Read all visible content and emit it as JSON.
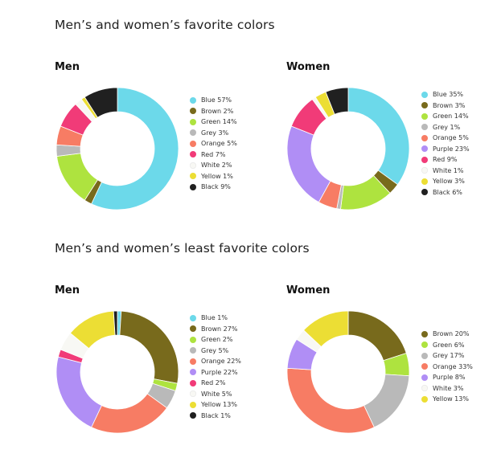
{
  "sections": [
    {
      "title": "Men’s and women’s favorite colors"
    },
    {
      "title": "Men’s and women’s least favorite colors"
    }
  ],
  "chart_data": [
    {
      "type": "pie",
      "title": "Men",
      "group": "favorite",
      "series": [
        {
          "values": [
            57,
            2,
            14,
            3,
            5,
            7,
            2,
            1,
            9
          ]
        }
      ],
      "categories": [
        "Blue",
        "Brown",
        "Green",
        "Grey",
        "Orange",
        "Red",
        "White",
        "Yellow",
        "Black"
      ],
      "labels": [
        "Blue 57%",
        "Brown 2%",
        "Green 14%",
        "Grey 3%",
        "Orange 5%",
        "Red 7%",
        "White 2%",
        "Yellow 1%",
        "Black 9%"
      ],
      "colors": [
        "#6cd9ea",
        "#786a1c",
        "#aee33f",
        "#b9b9b9",
        "#f77c64",
        "#f13b78",
        "#f8f8f4",
        "#ecde34",
        "#202020"
      ],
      "legend": "right"
    },
    {
      "type": "pie",
      "title": "Women",
      "group": "favorite",
      "series": [
        {
          "values": [
            35,
            3,
            14,
            1,
            5,
            23,
            9,
            1,
            3,
            6
          ]
        }
      ],
      "categories": [
        "Blue",
        "Brown",
        "Green",
        "Grey",
        "Orange",
        "Purple",
        "Red",
        "White",
        "Yellow",
        "Black"
      ],
      "labels": [
        "Blue 35%",
        "Brown 3%",
        "Green 14%",
        "Grey 1%",
        "Orange 5%",
        "Purple 23%",
        "Red 9%",
        "White 1%",
        "Yellow 3%",
        "Black 6%"
      ],
      "colors": [
        "#6cd9ea",
        "#786a1c",
        "#aee33f",
        "#b9b9b9",
        "#f77c64",
        "#b08ef5",
        "#f13b78",
        "#f8f8f4",
        "#ecde34",
        "#202020"
      ],
      "legend": "right"
    },
    {
      "type": "pie",
      "title": "Men",
      "group": "least favorite",
      "series": [
        {
          "values": [
            1,
            27,
            2,
            5,
            22,
            22,
            2,
            5,
            13,
            1
          ]
        }
      ],
      "categories": [
        "Blue",
        "Brown",
        "Green",
        "Grey",
        "Orange",
        "Purple",
        "Red",
        "White",
        "Yellow",
        "Black"
      ],
      "labels": [
        "Blue 1%",
        "Brown 27%",
        "Green 2%",
        "Grey 5%",
        "Orange 22%",
        "Purple 22%",
        "Red 2%",
        "White 5%",
        "Yellow 13%",
        "Black 1%"
      ],
      "colors": [
        "#6cd9ea",
        "#786a1c",
        "#aee33f",
        "#b9b9b9",
        "#f77c64",
        "#b08ef5",
        "#f13b78",
        "#f8f8f4",
        "#ecde34",
        "#202020"
      ],
      "legend": "right"
    },
    {
      "type": "pie",
      "title": "Women",
      "group": "least favorite",
      "series": [
        {
          "values": [
            20,
            6,
            17,
            33,
            8,
            3,
            13
          ]
        }
      ],
      "categories": [
        "Brown",
        "Green",
        "Grey",
        "Orange",
        "Purple",
        "White",
        "Yellow"
      ],
      "labels": [
        "Brown 20%",
        "Green 6%",
        "Grey 17%",
        "Orange 33%",
        "Purple 8%",
        "White 3%",
        "Yellow 13%"
      ],
      "colors": [
        "#786a1c",
        "#aee33f",
        "#b9b9b9",
        "#f77c64",
        "#b08ef5",
        "#f8f8f4",
        "#ecde34"
      ],
      "legend": "right"
    }
  ]
}
